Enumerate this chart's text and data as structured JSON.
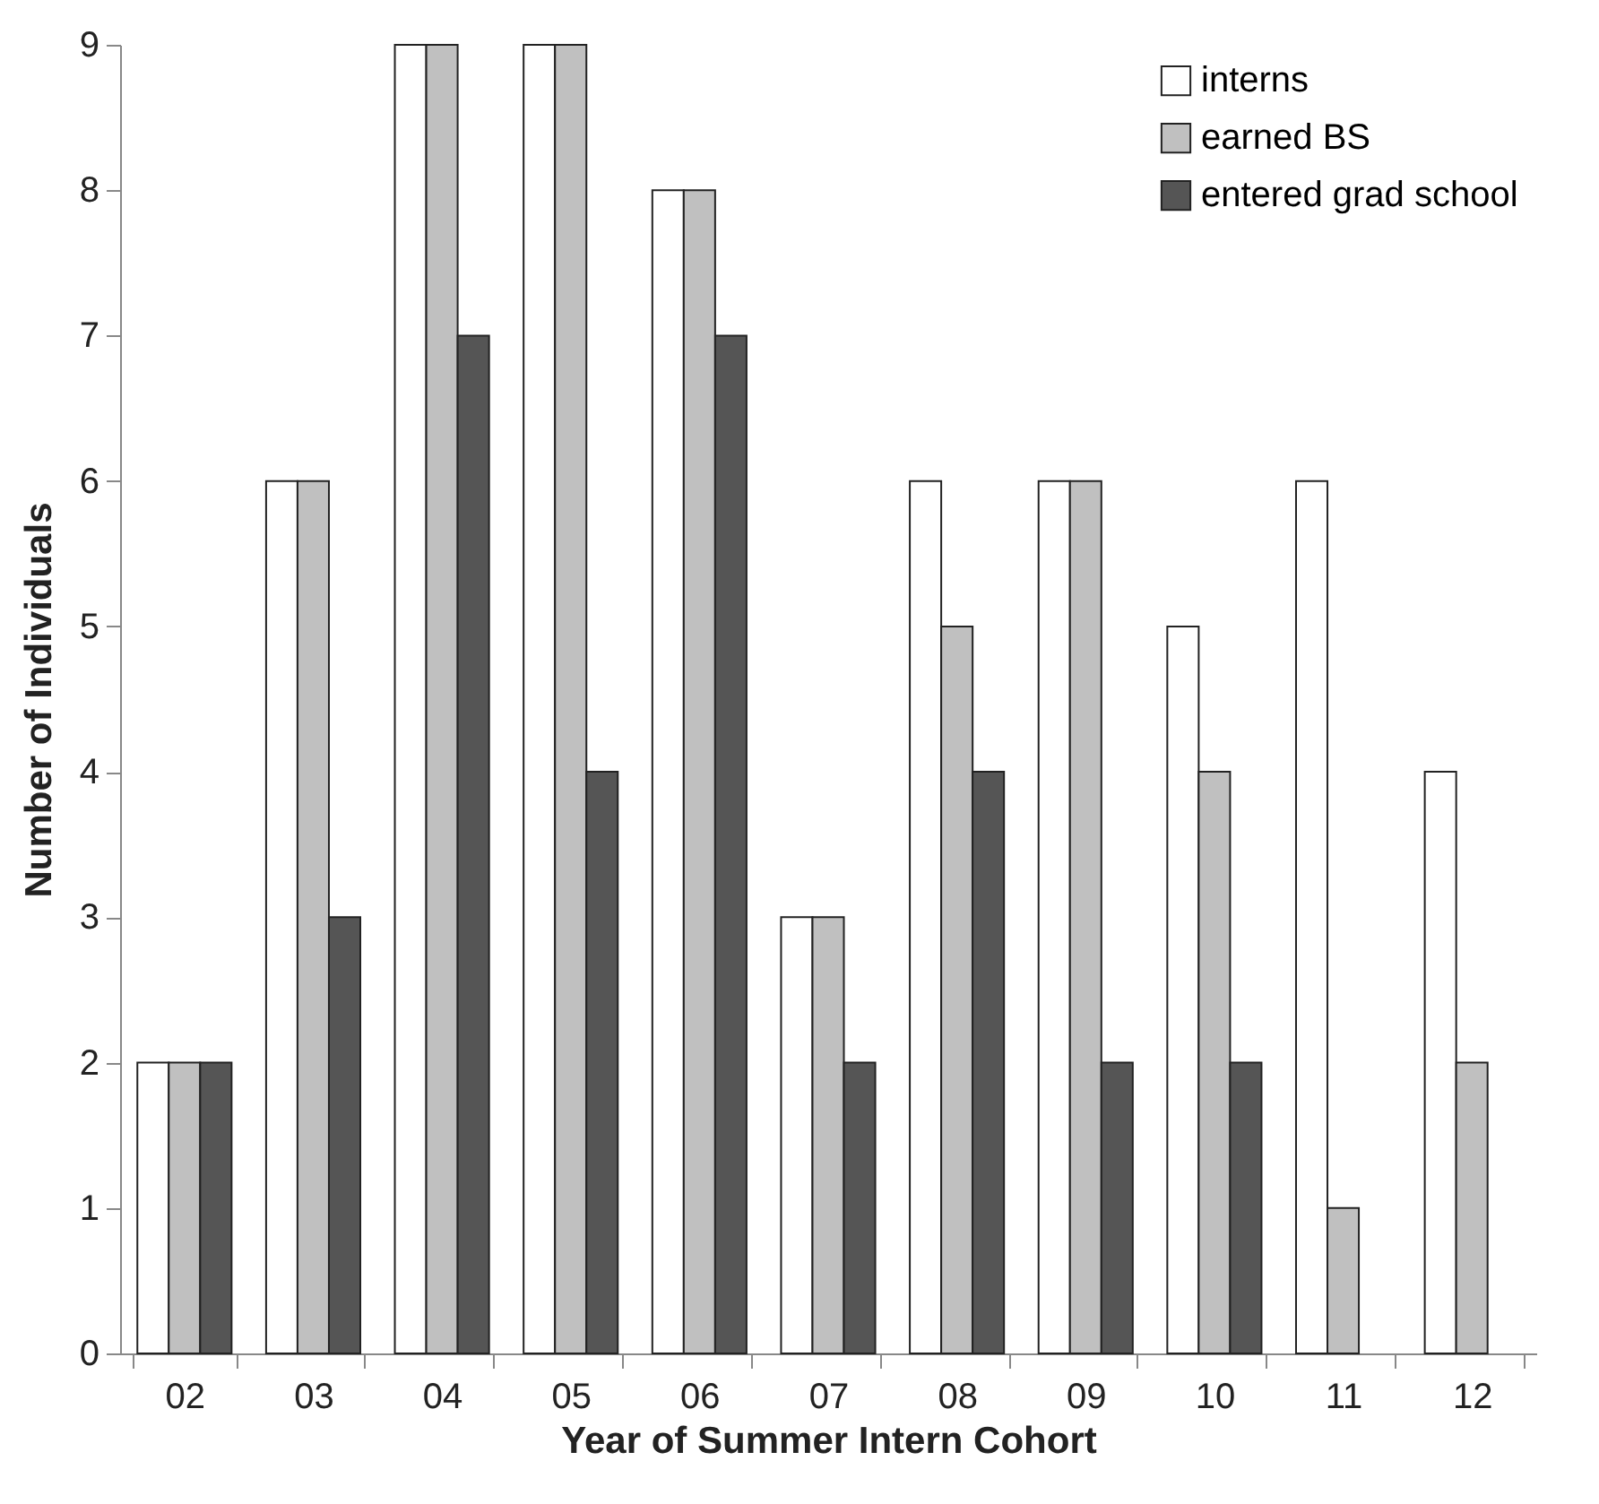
{
  "chart_data": {
    "type": "bar",
    "xlabel": "Year of Summer Intern Cohort",
    "ylabel": "Number of Individuals",
    "categories": [
      "02",
      "03",
      "04",
      "05",
      "06",
      "07",
      "08",
      "09",
      "10",
      "11",
      "12"
    ],
    "series": [
      {
        "name": "interns",
        "color": "#ffffff",
        "values": [
          2,
          6,
          9,
          9,
          8,
          3,
          6,
          6,
          5,
          6,
          4
        ]
      },
      {
        "name": "earned BS",
        "color": "#c0c0c0",
        "values": [
          2,
          6,
          9,
          9,
          8,
          3,
          5,
          6,
          4,
          1,
          2
        ]
      },
      {
        "name": "entered grad school",
        "color": "#555555",
        "values": [
          2,
          3,
          7,
          4,
          7,
          2,
          4,
          2,
          2,
          null,
          null
        ]
      }
    ],
    "ylim": [
      0,
      9
    ],
    "yticks": [
      0,
      1,
      2,
      3,
      4,
      5,
      6,
      7,
      8,
      9
    ],
    "grid": false,
    "legend": "top right"
  }
}
